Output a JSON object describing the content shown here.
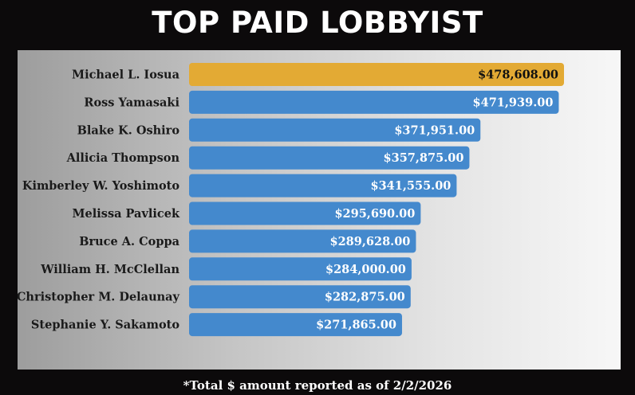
{
  "chart_data": {
    "type": "bar",
    "orientation": "horizontal",
    "title": "TOP PAID LOBBYIST",
    "categories": [
      "Michael L. Iosua",
      "Ross Yamasaki",
      "Blake K. Oshiro",
      "Allicia Thompson",
      "Kimberley W. Yoshimoto",
      "Melissa Pavlicek",
      "Bruce A. Coppa",
      "William H. McClellan",
      "Christopher M. Delaunay",
      "Stephanie Y. Sakamoto"
    ],
    "values": [
      478608.0,
      471939.0,
      371951.0,
      357875.0,
      341555.0,
      295690.0,
      289628.0,
      284000.0,
      282875.0,
      271865.0
    ],
    "value_labels": [
      "$478,608.00",
      "$471,939.00",
      "$371,951.00",
      "$357,875.00",
      "$341,555.00",
      "$295,690.00",
      "$289,628.00",
      "$284,000.00",
      "$282,875.00",
      "$271,865.00"
    ],
    "highlight_index": 0,
    "colors": {
      "highlight": "#e3aa34",
      "bar": "#4489cd",
      "highlight_text": "#111111",
      "bar_text": "#ffffff",
      "category_text": "#1a1a1a"
    },
    "grid": false,
    "legend": "none"
  },
  "footnote": "*Total $ amount reported as of 2/2/2026"
}
